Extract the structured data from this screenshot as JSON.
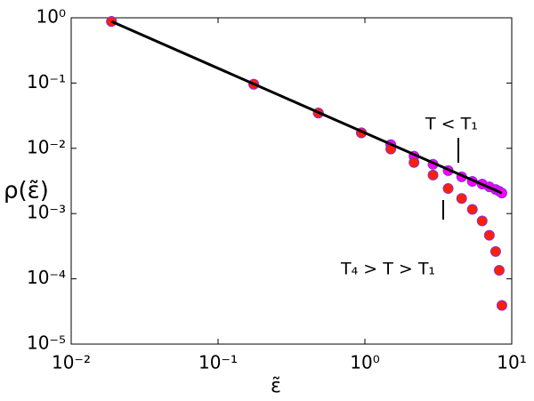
{
  "chart_data": {
    "type": "scatter",
    "xlabel": "ε̃",
    "ylabel": "ρ(ε̃)",
    "xscale": "log",
    "yscale": "log",
    "xlim": [
      0.01,
      10
    ],
    "ylim": [
      1e-05,
      1
    ],
    "xticks": [
      {
        "value": 0.01,
        "label": "10⁻²"
      },
      {
        "value": 0.1,
        "label": "10⁻¹"
      },
      {
        "value": 1,
        "label": "10⁰"
      },
      {
        "value": 10,
        "label": "10¹"
      }
    ],
    "yticks": [
      {
        "value": 1e-05,
        "label": "10⁻⁵"
      },
      {
        "value": 0.0001,
        "label": "10⁻⁴"
      },
      {
        "value": 0.001,
        "label": "10⁻³"
      },
      {
        "value": 0.01,
        "label": "10⁻²"
      },
      {
        "value": 0.1,
        "label": "10⁻¹"
      },
      {
        "value": 1,
        "label": "10⁰"
      }
    ],
    "annotations": [
      "T < T₁",
      "T₄ > T > T₁"
    ],
    "series": [
      {
        "type": "scatter",
        "color": "#ff00ff",
        "x": [
          0.0188,
          0.175,
          0.482,
          0.946,
          1.5,
          2.16,
          2.91,
          3.69,
          4.56,
          5.39,
          6.29,
          7.04,
          7.77,
          8.22,
          8.57
        ],
        "values": [
          0.88,
          0.0957,
          0.0347,
          0.0173,
          0.0114,
          0.00757,
          0.00569,
          0.00455,
          0.00365,
          0.00311,
          0.00283,
          0.00257,
          0.00234,
          0.0022,
          0.00206
        ]
      },
      {
        "type": "scatter",
        "color": "#ff2000",
        "x": [
          0.0188,
          0.175,
          0.482,
          0.946,
          1.5,
          2.16,
          2.91,
          3.69,
          4.56,
          5.39,
          6.29,
          7.04,
          7.77,
          8.22,
          8.57
        ],
        "values": [
          0.88,
          0.0957,
          0.0347,
          0.0173,
          0.00975,
          0.00606,
          0.00389,
          0.00242,
          0.0017,
          0.00116,
          0.00077,
          0.000464,
          0.000262,
          0.000135,
          3.91e-05
        ]
      },
      {
        "type": "line",
        "color": "#000000",
        "x": [
          0.0188,
          8.57
        ],
        "values": [
          0.88,
          0.00206
        ]
      }
    ]
  }
}
